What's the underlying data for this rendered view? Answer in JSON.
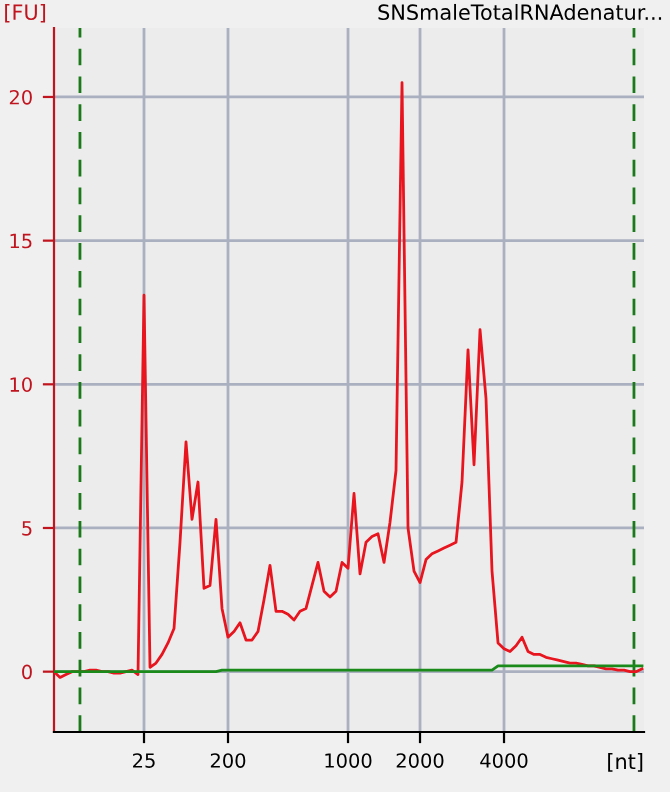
{
  "chart_data": {
    "type": "line",
    "title": "SNSmaleTotalRNAdenatur...",
    "ylabel": "[FU]",
    "xlabel": "[nt]",
    "categories": [
      null,
      null,
      null,
      null,
      null,
      null,
      null,
      null,
      null,
      null,
      null,
      null,
      null,
      null,
      null,
      "25",
      null,
      null,
      null,
      null,
      null,
      null,
      null,
      null,
      null,
      null,
      null,
      null,
      null,
      "200",
      null,
      null,
      null,
      null,
      null,
      null,
      null,
      null,
      null,
      null,
      null,
      null,
      null,
      null,
      null,
      null,
      null,
      null,
      null,
      "1000",
      null,
      null,
      null,
      null,
      null,
      null,
      null,
      null,
      null,
      null,
      null,
      "2000",
      null,
      null,
      null,
      null,
      null,
      null,
      null,
      null,
      null,
      null,
      null,
      null,
      null,
      "4000",
      null,
      null,
      null,
      null,
      null,
      null,
      null,
      null,
      null,
      null,
      null,
      null,
      null,
      null,
      null,
      null,
      null,
      null,
      null,
      null,
      null,
      null,
      null
    ],
    "ylim": [
      -2.1,
      22.4
    ],
    "yticks": [
      0,
      5,
      10,
      15,
      20
    ],
    "grid": true,
    "marker": "none",
    "line_style": "solid",
    "series": [
      {
        "color": "#e8141e",
        "values": [
          0,
          -0.2,
          -0.1,
          0,
          0,
          0,
          0.05,
          0.05,
          0,
          0,
          -0.05,
          -0.05,
          0,
          0.05,
          -0.1,
          13.1,
          0.15,
          0.3,
          0.6,
          1.0,
          1.5,
          4.5,
          8.0,
          5.3,
          6.6,
          2.9,
          3.0,
          5.3,
          2.2,
          1.2,
          1.4,
          1.7,
          1.1,
          1.1,
          1.4,
          2.5,
          3.7,
          2.1,
          2.1,
          2.0,
          1.8,
          2.1,
          2.2,
          3.0,
          3.8,
          2.8,
          2.6,
          2.8,
          3.8,
          3.6,
          6.2,
          3.4,
          4.5,
          4.7,
          4.8,
          3.8,
          5.2,
          7.0,
          20.5,
          5.0,
          3.5,
          3.1,
          3.9,
          4.1,
          4.2,
          4.3,
          4.4,
          4.5,
          6.6,
          11.2,
          7.2,
          11.9,
          9.5,
          3.5,
          1.0,
          0.8,
          0.7,
          0.9,
          1.2,
          0.7,
          0.6,
          0.6,
          0.5,
          0.45,
          0.4,
          0.35,
          0.3,
          0.3,
          0.25,
          0.2,
          0.2,
          0.15,
          0.1,
          0.1,
          0.05,
          0.05,
          0,
          0,
          0.1
        ]
      },
      {
        "color": "#1a8a1a",
        "values": [
          0,
          0,
          0,
          0,
          0,
          0,
          0,
          0,
          0,
          0,
          0,
          0,
          0,
          0,
          0,
          0,
          0,
          0,
          0,
          0,
          0,
          0,
          0,
          0,
          0,
          0,
          0,
          0,
          0.05,
          0.05,
          0.05,
          0.05,
          0.05,
          0.05,
          0.05,
          0.05,
          0.05,
          0.05,
          0.05,
          0.05,
          0.05,
          0.05,
          0.05,
          0.05,
          0.05,
          0.05,
          0.05,
          0.05,
          0.05,
          0.05,
          0.05,
          0.05,
          0.05,
          0.05,
          0.05,
          0.05,
          0.05,
          0.05,
          0.05,
          0.05,
          0.05,
          0.05,
          0.05,
          0.05,
          0.05,
          0.05,
          0.05,
          0.05,
          0.05,
          0.05,
          0.05,
          0.05,
          0.05,
          0.05,
          0.2,
          0.2,
          0.2,
          0.2,
          0.2,
          0.2,
          0.2,
          0.2,
          0.2,
          0.2,
          0.2,
          0.2,
          0.2,
          0.2,
          0.2,
          0.2,
          0.2,
          0.2,
          0.2,
          0.2,
          0.2,
          0.2,
          0.2,
          0.2,
          0.2
        ]
      }
    ]
  }
}
